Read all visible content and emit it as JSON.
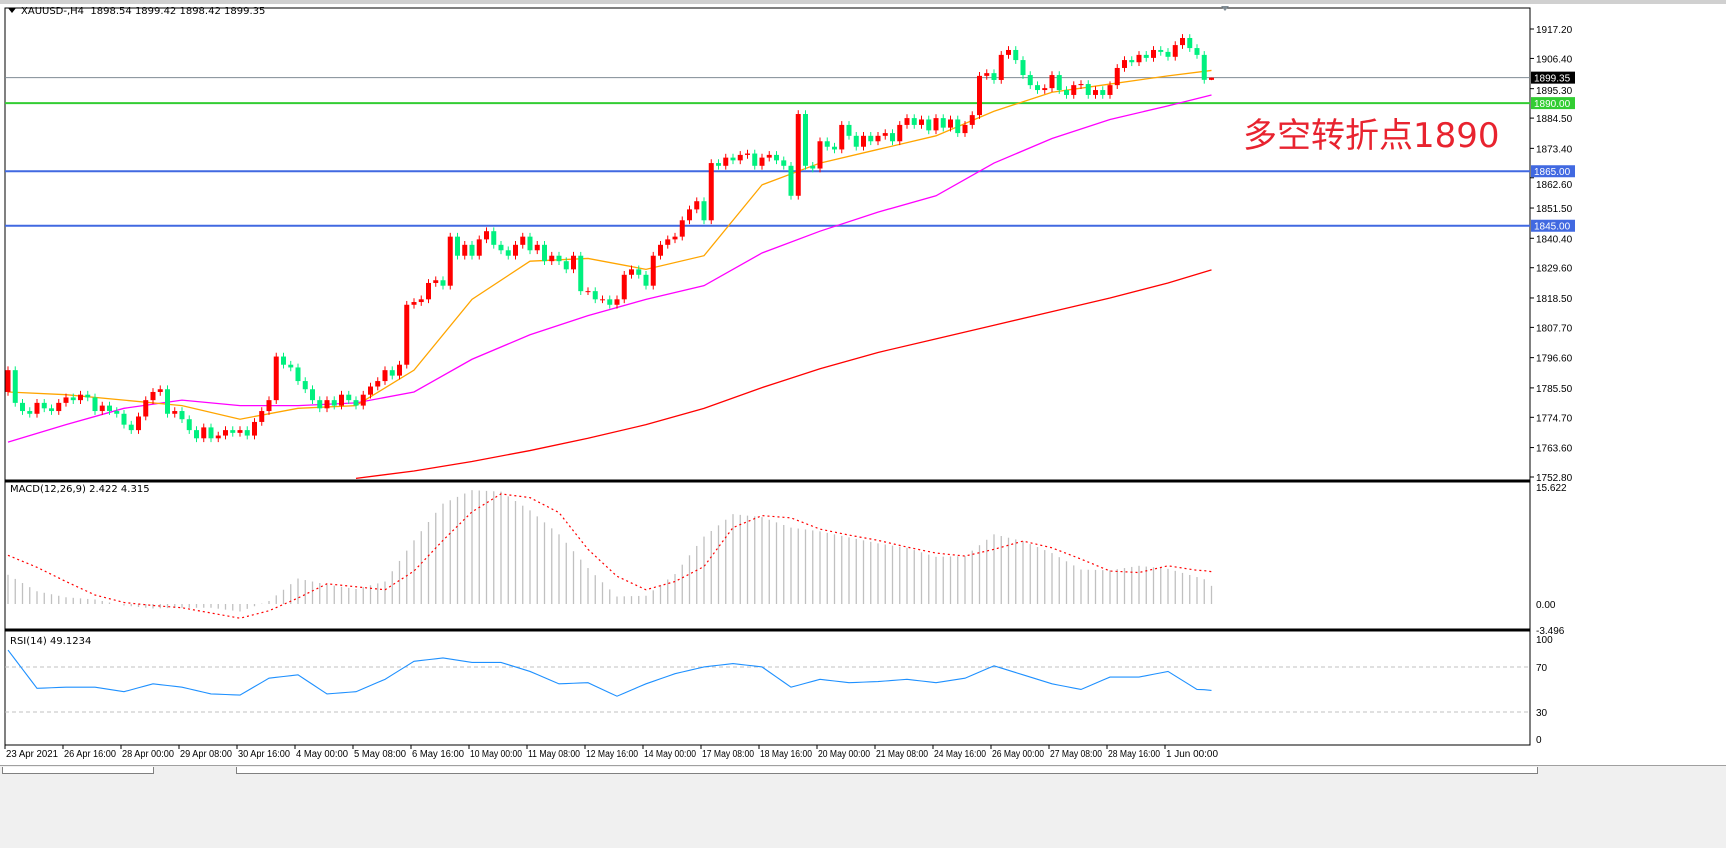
{
  "header": {
    "symbol": "XAUUSD-,H4",
    "ohlc": "1898.54 1899.42 1898.42 1899.35"
  },
  "annotation": "多空转折点1890",
  "colors": {
    "bull": "#ff0000",
    "bear": "#00f07f",
    "ma_fast": "#ffa500",
    "ma_mid": "#ff00ff",
    "ma_slow": "#ff0000",
    "line_1890": "#32cd32",
    "line_blue": "#4169e1",
    "bid_line": "#808c94",
    "macd_hist": "#c0c0c0",
    "macd_signal": "#ff0000",
    "rsi": "#1e90ff"
  },
  "chart_data": [
    {
      "type": "candlestick",
      "title": "XAUUSD-,H4",
      "price_axis_ticks": [
        "1917.20",
        "1906.40",
        "1895.30",
        "1884.50",
        "1873.40",
        "1862.60",
        "1851.50",
        "1840.40",
        "1829.60",
        "1818.50",
        "1807.70",
        "1796.60",
        "1785.50",
        "1774.70",
        "1763.60",
        "1752.80"
      ],
      "ylim": [
        1752.8,
        1917.2
      ],
      "time_labels": [
        "23 Apr 2021",
        "26 Apr 16:00",
        "28 Apr 00:00",
        "29 Apr 08:00",
        "30 Apr 16:00",
        "4 May 00:00",
        "5 May 08:00",
        "6 May 16:00",
        "10 May 00:00",
        "11 May 08:00",
        "12 May 16:00",
        "14 May 00:00",
        "17 May 08:00",
        "18 May 16:00",
        "20 May 00:00",
        "21 May 08:00",
        "24 May 16:00",
        "26 May 00:00",
        "27 May 08:00",
        "28 May 16:00",
        "1 Jun 00:00"
      ],
      "closes": [
        1792,
        1780,
        1777,
        1776,
        1780,
        1778,
        1777,
        1780,
        1782,
        1781,
        1783,
        1782,
        1777,
        1779,
        1777,
        1776,
        1772,
        1770,
        1775,
        1781,
        1784,
        1785,
        1776,
        1777,
        1774,
        1770,
        1767,
        1771,
        1767,
        1768,
        1770,
        1769,
        1770,
        1768,
        1773,
        1777,
        1781,
        1797,
        1794,
        1793,
        1788,
        1785,
        1781,
        1778,
        1781,
        1779,
        1783,
        1781,
        1779,
        1783,
        1786,
        1788,
        1792,
        1790,
        1794,
        1816,
        1817,
        1818,
        1824,
        1825,
        1823,
        1841,
        1834,
        1838,
        1834,
        1840,
        1843,
        1838,
        1836,
        1834,
        1838,
        1841,
        1836,
        1838,
        1832,
        1834,
        1832,
        1829,
        1834,
        1821,
        1821,
        1818,
        1818,
        1816,
        1818,
        1827,
        1829,
        1827,
        1823,
        1834,
        1838,
        1840,
        1841,
        1847,
        1851,
        1854,
        1847,
        1868,
        1867,
        1870,
        1869,
        1871,
        1871.5,
        1867,
        1870,
        1871,
        1869,
        1867,
        1856,
        1886,
        1867,
        1866,
        1876,
        1874,
        1873,
        1882,
        1878,
        1874,
        1878,
        1876,
        1878,
        1879,
        1876,
        1882,
        1884.5,
        1882,
        1884,
        1880,
        1884.5,
        1881,
        1884,
        1879,
        1882,
        1885.6,
        1900,
        1901,
        1898.5,
        1907.7,
        1909.5,
        1905.8,
        1900.3,
        1896.6,
        1894.8,
        1895.5,
        1900.3,
        1894.8,
        1893,
        1896.6,
        1897,
        1893,
        1894.8,
        1893,
        1896.6,
        1902.9,
        1905.8,
        1905,
        1907.7,
        1906.6,
        1909.5,
        1908.8,
        1907,
        1911.3,
        1913.9,
        1910.2,
        1907.7,
        1898.54,
        1899.35
      ],
      "last_candle": {
        "open": 1898.54,
        "high": 1899.42,
        "low": 1898.42,
        "close": 1899.35
      },
      "first_open": 1784,
      "moving_averages": {
        "sample_every_bars": 8,
        "fast": [
          1784,
          1783,
          1781,
          1779,
          1774,
          1778,
          1779,
          1792,
          1818,
          1832,
          1833,
          1829,
          1834,
          1860,
          1868,
          1873,
          1878,
          1887,
          1894,
          1897,
          1900,
          1902
        ],
        "mid": [
          1765.6,
          1772,
          1778,
          1781,
          1779,
          1779,
          1780,
          1784,
          1796,
          1805,
          1812,
          1818,
          1823,
          1835,
          1843,
          1850,
          1856,
          1868,
          1877,
          1884,
          1889,
          1893
        ],
        "slow": [
          null,
          null,
          null,
          null,
          null,
          null,
          1752.3,
          1755,
          1758.5,
          1762.5,
          1767,
          1772,
          1778,
          1785.6,
          1792.5,
          1798.5,
          1803.5,
          1808.5,
          1813.5,
          1818.5,
          1824,
          1828.8
        ]
      },
      "levels": [
        {
          "value": 1899.35,
          "label": "1899.35",
          "kind": "bid"
        },
        {
          "value": 1890,
          "label": "1890.00",
          "kind": "green"
        },
        {
          "value": 1865,
          "label": "1865.00",
          "kind": "blue"
        },
        {
          "value": 1845,
          "label": "1845.00",
          "kind": "blue"
        }
      ]
    },
    {
      "type": "bar+line",
      "title": "MACD(12,26,9) 2.422 4.315",
      "ylim": [
        -3.496,
        15.622
      ],
      "axis_ticks": [
        "15.622",
        "0.00",
        "-3.496"
      ],
      "sample_every_bars": 4,
      "histogram": [
        3.9,
        1.7,
        0.9,
        0.6,
        -0.2,
        -0.6,
        -0.5,
        -0.5,
        -1.0,
        0.4,
        3.4,
        2.6,
        2.0,
        3.0,
        8.5,
        13.4,
        15.2,
        15.0,
        12.5,
        9.3,
        4.8,
        1.0,
        1.1,
        4.0,
        9.0,
        12.0,
        11.6,
        10.2,
        9.7,
        8.9,
        8.1,
        7.5,
        6.3,
        6.4,
        9.3,
        8.4,
        6.8,
        4.6,
        4.5,
        5.1,
        4.7,
        3.6,
        2.422
      ],
      "signal": [
        6.5,
        4.9,
        3.0,
        1.2,
        0.2,
        -0.2,
        -0.5,
        -1.2,
        -1.9,
        -0.9,
        0.8,
        2.7,
        2.3,
        1.9,
        4.4,
        8.5,
        12.3,
        14.7,
        14.2,
        12.2,
        7.3,
        3.7,
        1.9,
        3.0,
        5.0,
        10.2,
        11.8,
        11.5,
        10.0,
        9.2,
        8.5,
        7.6,
        6.8,
        6.4,
        7.3,
        8.4,
        7.5,
        6.0,
        4.4,
        4.2,
        5.1,
        4.5,
        4.315
      ]
    },
    {
      "type": "line",
      "title": "RSI(14) 49.1234",
      "ylim": [
        0,
        100
      ],
      "axis_ticks": [
        "100",
        "70",
        "30",
        "0"
      ],
      "levels": [
        70,
        30
      ],
      "sample_every_bars": 4,
      "values": [
        85,
        51,
        52,
        52,
        48,
        55,
        52,
        46,
        45,
        60,
        63,
        46,
        48,
        59,
        75,
        78,
        74,
        74,
        66,
        55,
        56,
        44,
        55,
        64,
        70,
        73,
        70,
        52,
        59,
        56,
        57,
        59,
        56,
        60,
        71,
        63,
        55,
        50,
        61,
        61,
        66,
        50,
        49.1234
      ]
    }
  ]
}
